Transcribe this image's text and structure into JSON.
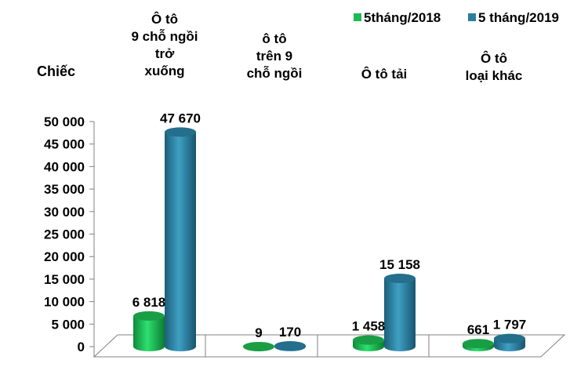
{
  "chart_data": {
    "type": "bar",
    "title": "",
    "ylabel": "Chiếc",
    "xlabel": "",
    "ylim": [
      0,
      50000
    ],
    "yticks": [
      0,
      5000,
      10000,
      15000,
      20000,
      25000,
      30000,
      35000,
      40000,
      45000,
      50000
    ],
    "ytick_labels": [
      "0",
      "5 000",
      "10 000",
      "15 000",
      "20 000",
      "25 000",
      "30 000",
      "35 000",
      "40 000",
      "45 000",
      "50 000"
    ],
    "categories": [
      [
        "Ô tô",
        "9 chỗ ngồi",
        "trở",
        "xuống"
      ],
      [
        "ô tô",
        "trên 9",
        "chỗ ngồi"
      ],
      [
        "Ô tô tải"
      ],
      [
        "Ô tô",
        "loại khác"
      ]
    ],
    "series": [
      {
        "name": "5tháng/2018",
        "color": "#1DB954",
        "values": [
          6818,
          9,
          1458,
          661
        ],
        "labels": [
          "6 818",
          "9",
          "1 458",
          "661"
        ]
      },
      {
        "name": "5 tháng/2019",
        "color": "#2B7E9E",
        "values": [
          47670,
          170,
          15158,
          1797
        ],
        "labels": [
          "47 670",
          "170",
          "15 158",
          "1 797"
        ]
      }
    ],
    "legend_position": "top-right",
    "grid": false
  }
}
